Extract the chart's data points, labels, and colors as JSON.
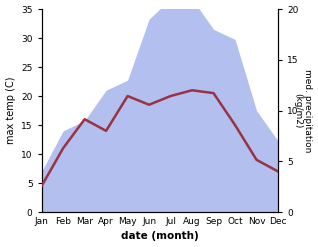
{
  "months": [
    "Jan",
    "Feb",
    "Mar",
    "Apr",
    "May",
    "Jun",
    "Jul",
    "Aug",
    "Sep",
    "Oct",
    "Nov",
    "Dec"
  ],
  "temp": [
    4.5,
    11,
    16,
    14,
    20,
    18.5,
    20,
    21,
    20.5,
    15,
    9,
    7
  ],
  "precip": [
    4,
    8,
    9,
    12,
    13,
    19,
    21,
    21,
    18,
    17,
    10,
    7
  ],
  "temp_color": "#993344",
  "precip_color": "#b3bfee",
  "left_ylabel": "max temp (C)",
  "right_ylabel": "med. precipitation\n(kg/m2)",
  "xlabel": "date (month)",
  "ylim_left": [
    0,
    35
  ],
  "ylim_right": [
    0,
    20
  ],
  "yticks_left": [
    0,
    5,
    10,
    15,
    20,
    25,
    30,
    35
  ],
  "yticks_right": [
    0,
    5,
    10,
    15,
    20
  ],
  "bg_color": "#ffffff",
  "linewidth": 1.8,
  "figsize": [
    3.18,
    2.47
  ],
  "dpi": 100
}
